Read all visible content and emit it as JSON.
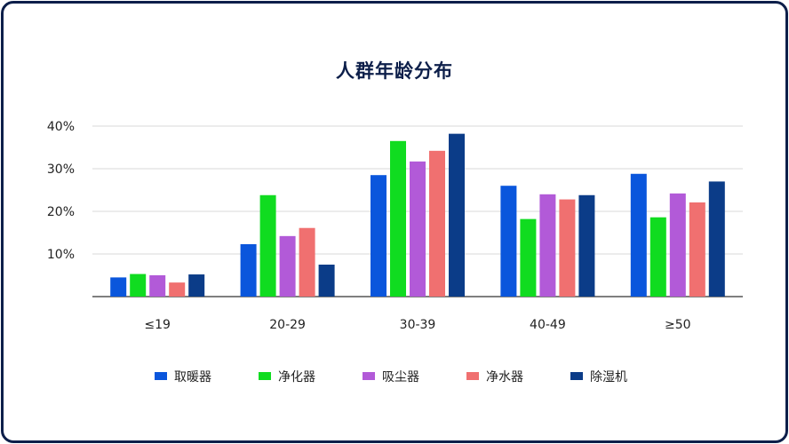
{
  "chart_data": {
    "type": "bar",
    "title": "人群年龄分布",
    "categories": [
      "≤19",
      "20-29",
      "30-39",
      "40-49",
      "≥50"
    ],
    "series": [
      {
        "name": "取暖器",
        "color": "#0a56dc",
        "values": [
          4.5,
          12.3,
          28.5,
          26.0,
          28.8
        ]
      },
      {
        "name": "净化器",
        "color": "#10dc20",
        "values": [
          5.3,
          23.8,
          36.5,
          18.2,
          18.6
        ]
      },
      {
        "name": "吸尘器",
        "color": "#b25ad8",
        "values": [
          5.0,
          14.2,
          31.7,
          24.0,
          24.2
        ]
      },
      {
        "name": "净水器",
        "color": "#f07070",
        "values": [
          3.3,
          16.1,
          34.2,
          22.8,
          22.1
        ]
      },
      {
        "name": "除湿机",
        "color": "#0b3c88",
        "values": [
          5.2,
          7.5,
          38.2,
          23.8,
          27.0
        ]
      }
    ],
    "y_ticks": [
      "10%",
      "20%",
      "30%",
      "40%"
    ],
    "y_tick_values": [
      10,
      20,
      30,
      40
    ],
    "ylim": [
      0,
      40
    ],
    "grid": true,
    "legend": "bottom"
  }
}
